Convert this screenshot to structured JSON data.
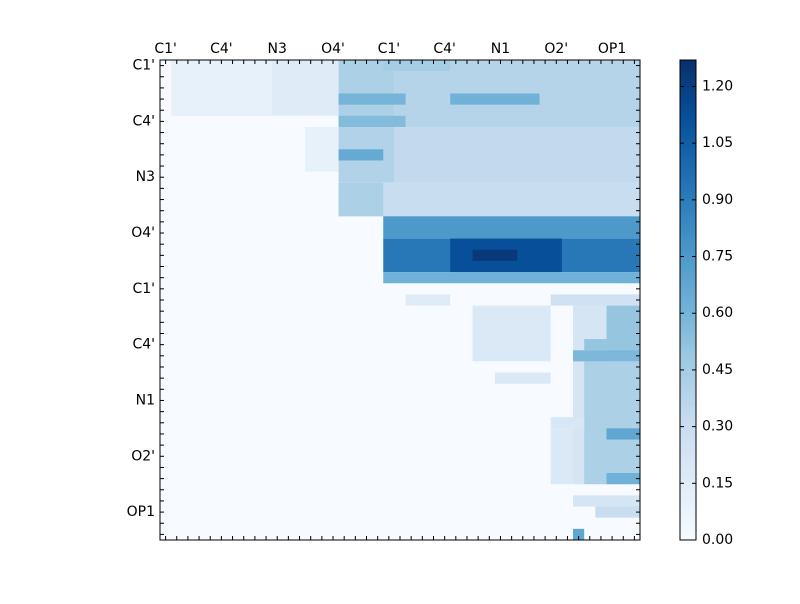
{
  "chart_data": {
    "type": "heatmap",
    "size": 43,
    "x_tick_labels": [
      "C1'",
      "C4'",
      "N3",
      "O4'",
      "C1'",
      "C4'",
      "N1",
      "O2'",
      "OP1"
    ],
    "y_tick_labels": [
      "C1'",
      "C4'",
      "N3",
      "O4'",
      "C1'",
      "C4'",
      "N1",
      "O2'",
      "OP1"
    ],
    "tick_positions": [
      0.5,
      5.5,
      10.5,
      15.5,
      20.5,
      25.5,
      30.5,
      35.5,
      40.5
    ],
    "colormap": "Blues",
    "vmin": 0.0,
    "vmax": 1.27,
    "colorbar_ticks": [
      "0.00",
      "0.15",
      "0.30",
      "0.45",
      "0.60",
      "0.75",
      "0.90",
      "1.05",
      "1.20"
    ],
    "colorbar_values": [
      0.0,
      0.15,
      0.3,
      0.45,
      0.6,
      0.75,
      0.9,
      1.05,
      1.2
    ],
    "blocks": [
      {
        "rows": [
          0,
          5
        ],
        "cols": [
          1,
          10
        ],
        "v": 0.1
      },
      {
        "rows": [
          0,
          5
        ],
        "cols": [
          10,
          16
        ],
        "v": 0.15
      },
      {
        "rows": [
          0,
          6
        ],
        "cols": [
          16,
          21
        ],
        "v": 0.42
      },
      {
        "rows": [
          0,
          6
        ],
        "cols": [
          21,
          43
        ],
        "v": 0.38
      },
      {
        "rows": [
          0,
          1
        ],
        "cols": [
          20,
          26
        ],
        "v": 0.45
      },
      {
        "rows": [
          3,
          4
        ],
        "cols": [
          16,
          22
        ],
        "v": 0.6
      },
      {
        "rows": [
          3,
          4
        ],
        "cols": [
          26,
          34
        ],
        "v": 0.62
      },
      {
        "rows": [
          5,
          6
        ],
        "cols": [
          16,
          22
        ],
        "v": 0.56
      },
      {
        "rows": [
          6,
          10
        ],
        "cols": [
          13,
          16
        ],
        "v": 0.1
      },
      {
        "rows": [
          6,
          11
        ],
        "cols": [
          16,
          21
        ],
        "v": 0.4
      },
      {
        "rows": [
          6,
          11
        ],
        "cols": [
          21,
          43
        ],
        "v": 0.33
      },
      {
        "rows": [
          8,
          9
        ],
        "cols": [
          16,
          20
        ],
        "v": 0.66
      },
      {
        "rows": [
          11,
          14
        ],
        "cols": [
          16,
          43
        ],
        "v": 0.3
      },
      {
        "rows": [
          11,
          14
        ],
        "cols": [
          16,
          20
        ],
        "v": 0.42
      },
      {
        "rows": [
          14,
          16
        ],
        "cols": [
          20,
          43
        ],
        "v": 0.75
      },
      {
        "rows": [
          16,
          19
        ],
        "cols": [
          20,
          43
        ],
        "v": 0.92
      },
      {
        "rows": [
          16,
          19
        ],
        "cols": [
          26,
          36
        ],
        "v": 1.12
      },
      {
        "rows": [
          17,
          18
        ],
        "cols": [
          28,
          32
        ],
        "v": 1.22
      },
      {
        "rows": [
          19,
          20
        ],
        "cols": [
          20,
          43
        ],
        "v": 0.62
      },
      {
        "rows": [
          21,
          22
        ],
        "cols": [
          22,
          26
        ],
        "v": 0.15
      },
      {
        "rows": [
          21,
          22
        ],
        "cols": [
          35,
          43
        ],
        "v": 0.26
      },
      {
        "rows": [
          22,
          27
        ],
        "cols": [
          28,
          35
        ],
        "v": 0.18
      },
      {
        "rows": [
          22,
          38
        ],
        "cols": [
          37,
          40
        ],
        "v": 0.22
      },
      {
        "rows": [
          22,
          27
        ],
        "cols": [
          40,
          43
        ],
        "v": 0.5
      },
      {
        "rows": [
          25,
          26
        ],
        "cols": [
          38,
          40
        ],
        "v": 0.5
      },
      {
        "rows": [
          26,
          27
        ],
        "cols": [
          37,
          43
        ],
        "v": 0.58
      },
      {
        "rows": [
          27,
          38
        ],
        "cols": [
          38,
          43
        ],
        "v": 0.42
      },
      {
        "rows": [
          28,
          29
        ],
        "cols": [
          30,
          35
        ],
        "v": 0.18
      },
      {
        "rows": [
          32,
          33
        ],
        "cols": [
          35,
          38
        ],
        "v": 0.2
      },
      {
        "rows": [
          33,
          38
        ],
        "cols": [
          35,
          37
        ],
        "v": 0.18
      },
      {
        "rows": [
          33,
          34
        ],
        "cols": [
          40,
          43
        ],
        "v": 0.68
      },
      {
        "rows": [
          37,
          38
        ],
        "cols": [
          40,
          43
        ],
        "v": 0.62
      },
      {
        "rows": [
          39,
          40
        ],
        "cols": [
          37,
          43
        ],
        "v": 0.22
      },
      {
        "rows": [
          40,
          41
        ],
        "cols": [
          39,
          43
        ],
        "v": 0.3
      },
      {
        "rows": [
          42,
          43
        ],
        "cols": [
          37,
          38
        ],
        "v": 0.68
      },
      {
        "rows": [
          43,
          44
        ],
        "cols": [
          38,
          42
        ],
        "v": 0.62
      }
    ]
  }
}
